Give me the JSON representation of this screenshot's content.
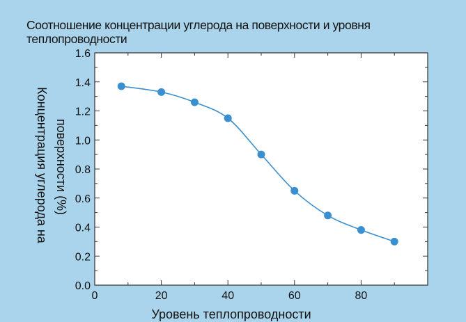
{
  "chart_data": {
    "type": "line",
    "title": "Соотношение концентрации углерода на поверхности и уровня теплопроводности",
    "xlabel": "Уровень теплопроводности",
    "ylabel": "Концентрация углерода на поверхности (%)",
    "xlim": [
      0,
      100
    ],
    "ylim": [
      0,
      1.6
    ],
    "xticks": [
      0,
      20,
      40,
      60,
      80
    ],
    "yticks": [
      "0.0",
      "0.2",
      "0.4",
      "0.6",
      "0.8",
      "1.0",
      "1.2",
      "1.4",
      "1.6"
    ],
    "grid": false,
    "series": [
      {
        "color": "#3a8fd0",
        "x": [
          8,
          20,
          30,
          40,
          50,
          60,
          70,
          80,
          90
        ],
        "y": [
          1.37,
          1.33,
          1.26,
          1.15,
          0.9,
          0.65,
          0.48,
          0.38,
          0.3
        ]
      }
    ]
  }
}
